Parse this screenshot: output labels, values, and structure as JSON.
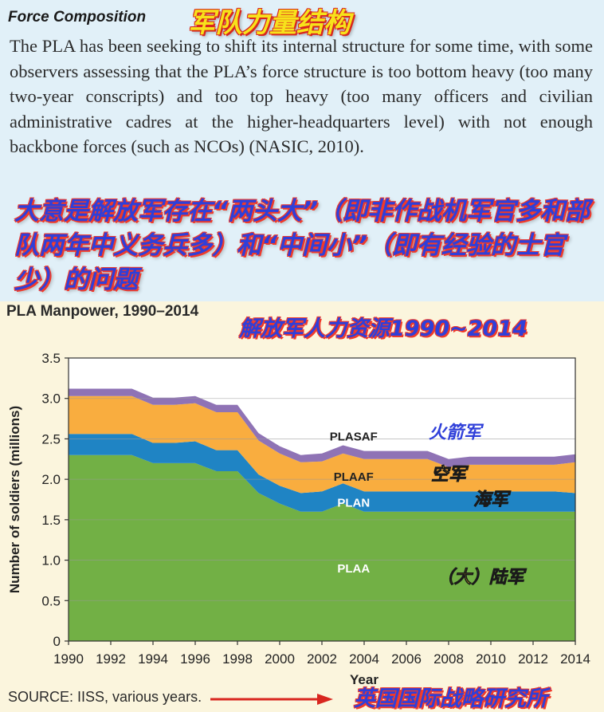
{
  "header": {
    "section_heading": "Force Composition",
    "section_heading_cn": "军队力量结构",
    "paragraph": "The PLA has been seeking to shift its internal structure for some time, with some observers assessing that the PLA’s force structure is too bottom heavy (too many two-year conscripts) and too top heavy (too many officers and civilian administrative cadres at the higher-headquarters level) with not enough backbone forces (such as NCOs) (NASIC, 2010).",
    "summary_cn": "大意是解放军存在“两头大”（即非作战机军官多和部队两年中义务兵多）和“中间小”（即有经验的士官少）的问题"
  },
  "chart_title_cn": "解放军人力资源1990~2014",
  "footer": {
    "source": "SOURCE: IISS, various years.",
    "source_cn": "英国国际战略研究所"
  },
  "chart_data": {
    "type": "area",
    "stacked": true,
    "title": "PLA Manpower, 1990–2014",
    "xlabel": "Year",
    "ylabel": "Number of soldiers (millions)",
    "xlim": [
      1990,
      2014
    ],
    "ylim": [
      0,
      3.5
    ],
    "x_ticks": [
      "1990",
      "1992",
      "1994",
      "1996",
      "1998",
      "2000",
      "2002",
      "2004",
      "2006",
      "2008",
      "2010",
      "2012",
      "2014"
    ],
    "y_ticks": [
      "0",
      "0.5",
      "1.0",
      "1.5",
      "2.0",
      "2.5",
      "3.0",
      "3.5"
    ],
    "grid": true,
    "x": [
      1990,
      1991,
      1992,
      1993,
      1994,
      1995,
      1996,
      1997,
      1998,
      1999,
      2000,
      2001,
      2002,
      2003,
      2004,
      2005,
      2006,
      2007,
      2008,
      2009,
      2010,
      2011,
      2012,
      2013,
      2014
    ],
    "series": [
      {
        "name": "PLAA",
        "label_cn": "（大）陆军",
        "color": "#72b045",
        "values": [
          2.3,
          2.3,
          2.3,
          2.3,
          2.2,
          2.2,
          2.2,
          2.1,
          2.1,
          1.83,
          1.7,
          1.6,
          1.6,
          1.7,
          1.6,
          1.6,
          1.6,
          1.6,
          1.6,
          1.6,
          1.6,
          1.6,
          1.6,
          1.6,
          1.6
        ]
      },
      {
        "name": "PLAN",
        "label_cn": "海军",
        "color": "#1f84c4",
        "values": [
          0.26,
          0.26,
          0.26,
          0.26,
          0.25,
          0.25,
          0.27,
          0.26,
          0.26,
          0.23,
          0.22,
          0.23,
          0.25,
          0.25,
          0.25,
          0.25,
          0.25,
          0.25,
          0.25,
          0.25,
          0.25,
          0.25,
          0.25,
          0.25,
          0.23
        ]
      },
      {
        "name": "PLAAF",
        "label_cn": "空军",
        "color": "#f9ad3f",
        "values": [
          0.47,
          0.47,
          0.47,
          0.47,
          0.47,
          0.47,
          0.47,
          0.47,
          0.47,
          0.42,
          0.4,
          0.38,
          0.37,
          0.37,
          0.4,
          0.4,
          0.4,
          0.4,
          0.3,
          0.33,
          0.33,
          0.33,
          0.33,
          0.33,
          0.38
        ]
      },
      {
        "name": "PLASAF",
        "label_cn": "火箭军",
        "color": "#8f73b5",
        "values": [
          0.09,
          0.09,
          0.09,
          0.09,
          0.09,
          0.09,
          0.09,
          0.09,
          0.09,
          0.09,
          0.09,
          0.09,
          0.1,
          0.1,
          0.1,
          0.1,
          0.1,
          0.1,
          0.1,
          0.1,
          0.1,
          0.1,
          0.1,
          0.1,
          0.1
        ]
      }
    ]
  }
}
